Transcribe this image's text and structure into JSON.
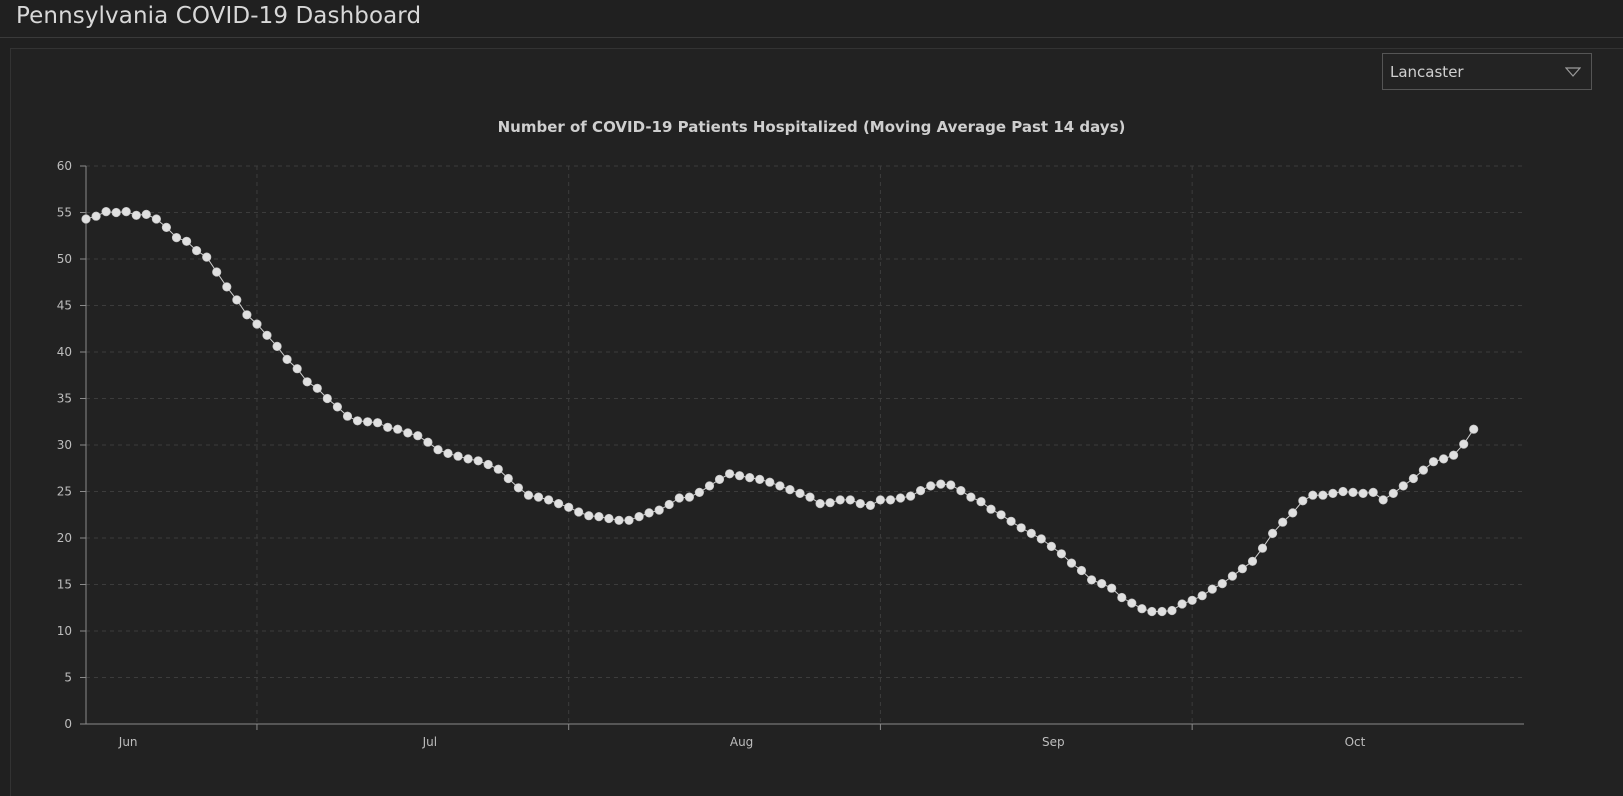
{
  "header": {
    "title": "Pennsylvania COVID-19 Dashboard"
  },
  "county_selector": {
    "selected": "Lancaster"
  },
  "colors": {
    "background": "#202020",
    "grid": "#3c3c3c",
    "axis": "#8a8a8a",
    "point": "#e0e0e0",
    "line": "#cfcfcf"
  },
  "chart_data": {
    "type": "line",
    "title": "Number of COVID-19 Patients Hospitalized (Moving Average Past 14 days)",
    "xlabel": "",
    "ylabel": "",
    "ylim": [
      0,
      60
    ],
    "yticks": [
      0,
      5,
      10,
      15,
      20,
      25,
      30,
      35,
      40,
      45,
      50,
      55,
      60
    ],
    "xlim": [
      "2020-05-29",
      "2020-10-19"
    ],
    "x_month_labels": [
      {
        "label": "Jun",
        "date": "2020-06-01"
      },
      {
        "label": "Jul",
        "date": "2020-07-01"
      },
      {
        "label": "Aug",
        "date": "2020-08-01"
      },
      {
        "label": "Sep",
        "date": "2020-09-01"
      },
      {
        "label": "Oct",
        "date": "2020-10-01"
      }
    ],
    "x_gridlines": [
      "2020-06-15",
      "2020-07-16",
      "2020-08-16",
      "2020-09-16"
    ],
    "grid": true,
    "legend": "none",
    "series": [
      {
        "start_date": "2020-05-29",
        "values": [
          54.3,
          54.6,
          55.1,
          55.0,
          55.1,
          54.7,
          54.8,
          54.3,
          53.4,
          52.3,
          51.9,
          50.9,
          50.2,
          48.6,
          47.0,
          45.6,
          44.0,
          43.0,
          41.8,
          40.6,
          39.2,
          38.2,
          36.8,
          36.1,
          35.0,
          34.1,
          33.1,
          32.6,
          32.5,
          32.4,
          31.9,
          31.7,
          31.3,
          31.0,
          30.3,
          29.5,
          29.1,
          28.8,
          28.5,
          28.3,
          27.9,
          27.4,
          26.4,
          25.4,
          24.6,
          24.4,
          24.1,
          23.7,
          23.3,
          22.8,
          22.4,
          22.3,
          22.1,
          21.9,
          21.9,
          22.3,
          22.7,
          23.0,
          23.6,
          24.3,
          24.4,
          24.9,
          25.6,
          26.3,
          26.9,
          26.7,
          26.5,
          26.3,
          26.0,
          25.6,
          25.2,
          24.8,
          24.4,
          23.7,
          23.8,
          24.1,
          24.1,
          23.7,
          23.5,
          24.1,
          24.1,
          24.3,
          24.5,
          25.1,
          25.6,
          25.8,
          25.7,
          25.1,
          24.4,
          23.9,
          23.1,
          22.5,
          21.8,
          21.1,
          20.5,
          19.9,
          19.1,
          18.3,
          17.3,
          16.5,
          15.5,
          15.1,
          14.6,
          13.6,
          13.0,
          12.4,
          12.1,
          12.1,
          12.2,
          12.9,
          13.3,
          13.8,
          14.5,
          15.1,
          15.9,
          16.7,
          17.5,
          18.9,
          20.5,
          21.7,
          22.7,
          24.0,
          24.6,
          24.6,
          24.8,
          25.0,
          24.9,
          24.8,
          24.9,
          24.1,
          24.8,
          25.6,
          26.4,
          27.3,
          28.2,
          28.5,
          28.9,
          30.1,
          31.7
        ]
      }
    ]
  }
}
